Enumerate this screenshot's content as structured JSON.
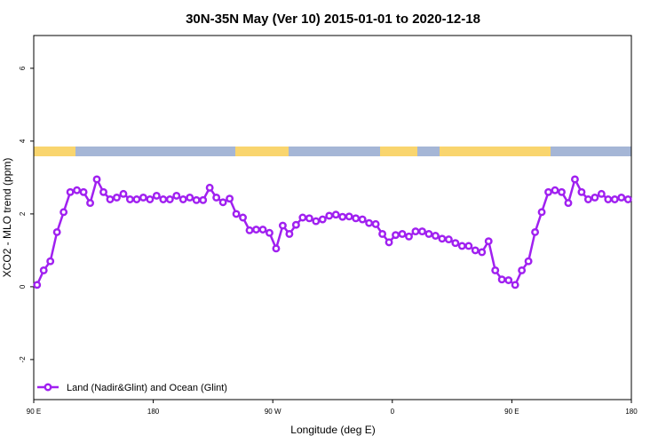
{
  "chart_data": {
    "type": "line",
    "title": "30N-35N May (Ver 10)   2015-01-01 to 2020-12-18",
    "x_label": "Longitude (deg E)",
    "y_label": "XCO2 - MLO trend (ppm)",
    "xlim": [
      90,
      540
    ],
    "ylim": [
      -3.1,
      6.9
    ],
    "xticks": [
      {
        "value": 90,
        "label": "90 E"
      },
      180,
      {
        "value": 270,
        "label": "90 W"
      },
      {
        "value": 360,
        "label": "0"
      },
      {
        "value": 450,
        "label": "90 E"
      },
      {
        "value": 540,
        "label": "180"
      }
    ],
    "yticks": [
      -2,
      0,
      2,
      4,
      6
    ],
    "grid": false,
    "legend": "bottomleft",
    "x": [
      92.5,
      97.5,
      102.5,
      107.5,
      112.5,
      117.5,
      122.5,
      127.5,
      132.5,
      137.5,
      142.5,
      147.5,
      152.5,
      157.5,
      162.5,
      167.5,
      172.5,
      177.5,
      182.5,
      187.5,
      192.5,
      197.5,
      202.5,
      207.5,
      212.5,
      217.5,
      222.5,
      227.5,
      232.5,
      237.5,
      242.5,
      247.5,
      252.5,
      257.5,
      262.5,
      267.5,
      272.5,
      277.5,
      282.5,
      287.5,
      292.5,
      297.5,
      302.5,
      307.5,
      312.5,
      317.5,
      322.5,
      327.5,
      332.5,
      337.5,
      342.5,
      347.5,
      352.5,
      357.5,
      362.5,
      367.5,
      372.5,
      377.5,
      382.5,
      387.5,
      392.5,
      397.5,
      402.5,
      407.5,
      412.5,
      417.5,
      422.5,
      427.5,
      432.5,
      437.5,
      442.5,
      447.5,
      452.5,
      457.5,
      462.5,
      467.5,
      472.5,
      477.5,
      482.5,
      487.5,
      492.5,
      497.5,
      502.5,
      507.5,
      512.5,
      517.5,
      522.5,
      527.5,
      532.5,
      537.5
    ],
    "series": [
      {
        "name": "Land (Nadir&Glint) and Ocean (Glint)",
        "color": "#a020f0",
        "values": [
          0.05,
          0.45,
          0.7,
          1.5,
          2.05,
          2.6,
          2.65,
          2.6,
          2.3,
          2.95,
          2.6,
          2.4,
          2.45,
          2.55,
          2.4,
          2.4,
          2.45,
          2.4,
          2.5,
          2.4,
          2.4,
          2.5,
          2.4,
          2.45,
          2.38,
          2.38,
          2.72,
          2.45,
          2.32,
          2.42,
          2.0,
          1.9,
          1.55,
          1.57,
          1.57,
          1.48,
          1.05,
          1.68,
          1.45,
          1.7,
          1.9,
          1.88,
          1.8,
          1.85,
          1.95,
          1.98,
          1.92,
          1.93,
          1.88,
          1.85,
          1.75,
          1.72,
          1.45,
          1.22,
          1.42,
          1.45,
          1.38,
          1.52,
          1.52,
          1.45,
          1.4,
          1.32,
          1.3,
          1.2,
          1.12,
          1.12,
          1.0,
          0.95,
          1.25,
          0.45,
          0.2,
          0.18,
          0.05,
          0.45,
          0.7,
          1.5,
          2.05,
          2.6,
          2.65,
          2.6,
          2.3,
          2.95,
          2.6,
          2.4,
          2.45,
          2.55,
          2.4,
          2.4,
          2.45,
          2.4
        ]
      }
    ]
  }
}
